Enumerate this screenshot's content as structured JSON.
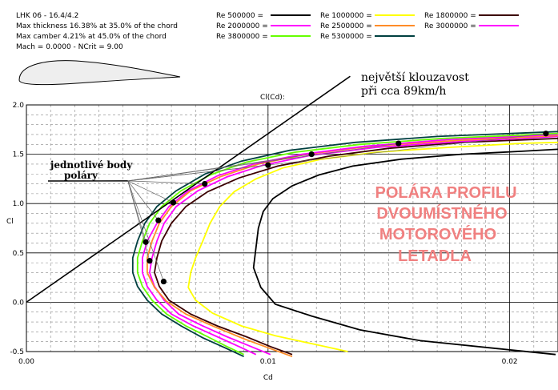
{
  "info": {
    "lines": [
      "LHK  06  -  16.4/4.2",
      "Max thickness 16.38% at 35.0% of the chord",
      "Max camber 4.21% at 45.0% of the chord",
      "Mach = 0.0000 - NCrit = 9.00"
    ]
  },
  "annotations": {
    "tangent_line1": "největší  klouzavost",
    "tangent_line2": "při cca 89km/h",
    "points_line1": "jednotlivé body",
    "points_line2": "poláry",
    "headline": [
      "POLÁRA  PROFILU",
      "DVOUMÍSTNÉHO",
      "MOTOROVÉHO",
      "LETADLA"
    ]
  },
  "chart_data": {
    "type": "line",
    "title": "",
    "xlabel": "Cd",
    "ylabel": "Cl",
    "aux_label": "Cl(Cd):",
    "xlim": [
      0.0,
      0.022
    ],
    "ylim": [
      -0.5,
      2.0
    ],
    "x_ticks": [
      0.0,
      0.01,
      0.02
    ],
    "x_tick_labels": [
      "0.00",
      "0.01",
      "0.02"
    ],
    "y_ticks": [
      -0.5,
      0.0,
      0.5,
      1.0,
      1.5,
      2.0
    ],
    "y_tick_labels": [
      "-0.5",
      "0.0",
      "0.5",
      "1.0",
      "1.5",
      "2.0"
    ],
    "grid": true,
    "legend_position": "top-right",
    "series": [
      {
        "name": "Re 500000",
        "color": "#000000",
        "points": [
          [
            0.0219,
            -0.53
          ],
          [
            0.0195,
            -0.47
          ],
          [
            0.0163,
            -0.39
          ],
          [
            0.0138,
            -0.28
          ],
          [
            0.0118,
            -0.14
          ],
          [
            0.0103,
            -0.02
          ],
          [
            0.0097,
            0.15
          ],
          [
            0.0094,
            0.35
          ],
          [
            0.0095,
            0.55
          ],
          [
            0.0096,
            0.75
          ],
          [
            0.0098,
            0.92
          ],
          [
            0.0102,
            1.05
          ],
          [
            0.011,
            1.18
          ],
          [
            0.0121,
            1.29
          ],
          [
            0.0135,
            1.38
          ],
          [
            0.0155,
            1.45
          ],
          [
            0.018,
            1.5
          ],
          [
            0.0205,
            1.53
          ],
          [
            0.022,
            1.55
          ]
        ]
      },
      {
        "name": "Re 1000000",
        "color": "#ffff00",
        "points": [
          [
            0.0133,
            -0.5
          ],
          [
            0.012,
            -0.43
          ],
          [
            0.0103,
            -0.34
          ],
          [
            0.0089,
            -0.24
          ],
          [
            0.0077,
            -0.11
          ],
          [
            0.007,
            0.02
          ],
          [
            0.0067,
            0.15
          ],
          [
            0.0068,
            0.3
          ],
          [
            0.007,
            0.45
          ],
          [
            0.0073,
            0.62
          ],
          [
            0.0076,
            0.8
          ],
          [
            0.008,
            0.97
          ],
          [
            0.0086,
            1.12
          ],
          [
            0.0095,
            1.25
          ],
          [
            0.0106,
            1.36
          ],
          [
            0.0122,
            1.45
          ],
          [
            0.0145,
            1.52
          ],
          [
            0.0175,
            1.57
          ],
          [
            0.0205,
            1.61
          ],
          [
            0.022,
            1.62
          ]
        ]
      },
      {
        "name": "Re 1800000",
        "color": "#3b0000",
        "points": [
          [
            0.011,
            -0.53
          ],
          [
            0.0101,
            -0.45
          ],
          [
            0.0091,
            -0.35
          ],
          [
            0.0079,
            -0.24
          ],
          [
            0.0068,
            -0.12
          ],
          [
            0.0059,
            0.02
          ],
          [
            0.0055,
            0.16
          ],
          [
            0.0053,
            0.3
          ],
          [
            0.0054,
            0.45
          ],
          [
            0.0056,
            0.62
          ],
          [
            0.006,
            0.8
          ],
          [
            0.0066,
            0.97
          ],
          [
            0.0075,
            1.12
          ],
          [
            0.0088,
            1.26
          ],
          [
            0.0104,
            1.38
          ],
          [
            0.0125,
            1.48
          ],
          [
            0.015,
            1.56
          ],
          [
            0.018,
            1.62
          ],
          [
            0.022,
            1.66
          ]
        ]
      },
      {
        "name": "Re 2000000",
        "color": "#ff00ff",
        "points": [
          [
            0.0101,
            -0.53
          ],
          [
            0.0093,
            -0.45
          ],
          [
            0.0083,
            -0.35
          ],
          [
            0.0073,
            -0.24
          ],
          [
            0.0063,
            -0.12
          ],
          [
            0.0057,
            0.02
          ],
          [
            0.0053,
            0.16
          ],
          [
            0.0051,
            0.3
          ],
          [
            0.0052,
            0.45
          ],
          [
            0.0054,
            0.62
          ],
          [
            0.0057,
            0.8
          ],
          [
            0.0062,
            0.97
          ],
          [
            0.0071,
            1.13
          ],
          [
            0.0083,
            1.27
          ],
          [
            0.0098,
            1.39
          ],
          [
            0.0118,
            1.49
          ],
          [
            0.0145,
            1.57
          ],
          [
            0.018,
            1.63
          ],
          [
            0.022,
            1.68
          ]
        ]
      },
      {
        "name": "Re 2500000",
        "color": "#ff8c28",
        "points": [
          [
            0.011,
            -0.55
          ],
          [
            0.0101,
            -0.47
          ],
          [
            0.009,
            -0.37
          ],
          [
            0.0078,
            -0.25
          ],
          [
            0.0066,
            -0.12
          ],
          [
            0.0058,
            0.01
          ],
          [
            0.0053,
            0.15
          ],
          [
            0.005,
            0.3
          ],
          [
            0.005,
            0.45
          ],
          [
            0.0052,
            0.62
          ],
          [
            0.0055,
            0.8
          ],
          [
            0.006,
            0.97
          ],
          [
            0.0068,
            1.13
          ],
          [
            0.008,
            1.27
          ],
          [
            0.0096,
            1.4
          ],
          [
            0.0116,
            1.5
          ],
          [
            0.0142,
            1.58
          ],
          [
            0.0178,
            1.64
          ],
          [
            0.022,
            1.69
          ]
        ]
      },
      {
        "name": "Re 3000000",
        "color": "#ff00ff",
        "points": [
          [
            0.0095,
            -0.53
          ],
          [
            0.0088,
            -0.45
          ],
          [
            0.0079,
            -0.35
          ],
          [
            0.0069,
            -0.24
          ],
          [
            0.006,
            -0.12
          ],
          [
            0.0054,
            0.02
          ],
          [
            0.005,
            0.16
          ],
          [
            0.0048,
            0.3
          ],
          [
            0.0048,
            0.45
          ],
          [
            0.005,
            0.62
          ],
          [
            0.0054,
            0.8
          ],
          [
            0.0059,
            0.97
          ],
          [
            0.0067,
            1.13
          ],
          [
            0.0079,
            1.28
          ],
          [
            0.0094,
            1.4
          ],
          [
            0.0114,
            1.5
          ],
          [
            0.014,
            1.58
          ],
          [
            0.0175,
            1.65
          ],
          [
            0.022,
            1.7
          ]
        ]
      },
      {
        "name": "Re 3800000",
        "color": "#66ff00",
        "points": [
          [
            0.009,
            -0.53
          ],
          [
            0.0083,
            -0.45
          ],
          [
            0.0075,
            -0.35
          ],
          [
            0.0066,
            -0.24
          ],
          [
            0.0058,
            -0.12
          ],
          [
            0.0052,
            0.02
          ],
          [
            0.0048,
            0.16
          ],
          [
            0.0046,
            0.3
          ],
          [
            0.0046,
            0.45
          ],
          [
            0.0048,
            0.62
          ],
          [
            0.0051,
            0.8
          ],
          [
            0.0056,
            0.97
          ],
          [
            0.0064,
            1.13
          ],
          [
            0.0076,
            1.29
          ],
          [
            0.0091,
            1.42
          ],
          [
            0.0111,
            1.52
          ],
          [
            0.0138,
            1.6
          ],
          [
            0.0172,
            1.66
          ],
          [
            0.022,
            1.71
          ]
        ]
      },
      {
        "name": "Re 5300000",
        "color": "#004040",
        "points": [
          [
            0.009,
            -0.55
          ],
          [
            0.0082,
            -0.46
          ],
          [
            0.0073,
            -0.36
          ],
          [
            0.0064,
            -0.24
          ],
          [
            0.0056,
            -0.12
          ],
          [
            0.005,
            0.02
          ],
          [
            0.0046,
            0.16
          ],
          [
            0.0044,
            0.3
          ],
          [
            0.0044,
            0.45
          ],
          [
            0.0046,
            0.62
          ],
          [
            0.0049,
            0.8
          ],
          [
            0.0054,
            0.97
          ],
          [
            0.0062,
            1.13
          ],
          [
            0.0074,
            1.3
          ],
          [
            0.0089,
            1.43
          ],
          [
            0.0109,
            1.54
          ],
          [
            0.0136,
            1.62
          ],
          [
            0.017,
            1.68
          ],
          [
            0.022,
            1.73
          ]
        ]
      }
    ],
    "tangent_line": {
      "from": [
        0.0,
        0.0
      ],
      "to": [
        0.0134,
        2.29
      ]
    },
    "marked_points": [
      [
        0.00568,
        0.21
      ],
      [
        0.0051,
        0.42
      ],
      [
        0.00494,
        0.61
      ],
      [
        0.00546,
        0.83
      ],
      [
        0.00608,
        1.01
      ],
      [
        0.00738,
        1.2
      ],
      [
        0.01,
        1.39
      ],
      [
        0.0118,
        1.5
      ],
      [
        0.0154,
        1.61
      ],
      [
        0.0215,
        1.71
      ]
    ],
    "callout_origin": [
      0.0042,
      1.23
    ]
  }
}
